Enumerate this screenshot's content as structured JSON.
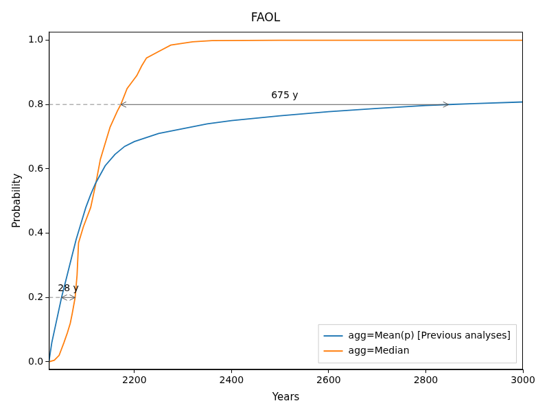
{
  "chart_data": {
    "type": "line",
    "title": "FAOL",
    "x_label": "Years",
    "y_label": "Probability",
    "xlim": [
      2024,
      3000
    ],
    "xticks": [
      2200,
      2400,
      2600,
      2800,
      3000
    ],
    "ylim": [
      -0.024,
      1.026
    ],
    "yticks": [
      {
        "value": 0,
        "label": "0.0"
      },
      {
        "value": 0.2,
        "label": "0.2"
      },
      {
        "value": 0.4,
        "label": "0.4"
      },
      {
        "value": 0.6,
        "label": "0.6"
      },
      {
        "value": 0.8,
        "label": "0.8"
      },
      {
        "value": 1,
        "label": "1.0"
      }
    ],
    "grid": false,
    "legend": "lower right",
    "series": [
      {
        "name": "agg=Mean(p) [Previous analyses]",
        "color": "#1f77b4",
        "x": [
          2024,
          2030,
          2040,
          2050,
          2060,
          2070,
          2080,
          2090,
          2100,
          2110,
          2120,
          2140,
          2160,
          2180,
          2200,
          2250,
          2300,
          2350,
          2400,
          2500,
          2600,
          2700,
          2800,
          2847,
          2900,
          3000
        ],
        "values": [
          0.0,
          0.06,
          0.13,
          0.2,
          0.26,
          0.32,
          0.38,
          0.43,
          0.48,
          0.52,
          0.555,
          0.61,
          0.645,
          0.67,
          0.685,
          0.71,
          0.725,
          0.74,
          0.75,
          0.765,
          0.778,
          0.788,
          0.797,
          0.8,
          0.803,
          0.808
        ]
      },
      {
        "name": "agg=Median",
        "color": "#ff7f0e",
        "x": [
          2024,
          2035,
          2045,
          2050,
          2055,
          2062,
          2068,
          2072,
          2078,
          2082,
          2085,
          2095,
          2110,
          2120,
          2130,
          2140,
          2150,
          2165,
          2172,
          2185,
          2195,
          2205,
          2215,
          2225,
          2250,
          2275,
          2320,
          2360,
          2500,
          3000
        ],
        "values": [
          0.0,
          0.005,
          0.02,
          0.04,
          0.06,
          0.09,
          0.12,
          0.15,
          0.2,
          0.27,
          0.37,
          0.42,
          0.48,
          0.55,
          0.63,
          0.68,
          0.73,
          0.78,
          0.8,
          0.85,
          0.87,
          0.89,
          0.92,
          0.945,
          0.965,
          0.985,
          0.995,
          0.999,
          1.0,
          1.0
        ]
      }
    ],
    "annotations": [
      {
        "text": "675 y",
        "x_start": 2172,
        "x_end": 2847,
        "y": 0.8
      },
      {
        "text": "28 y",
        "x_start": 2050,
        "x_end": 2078,
        "y": 0.2
      }
    ]
  }
}
